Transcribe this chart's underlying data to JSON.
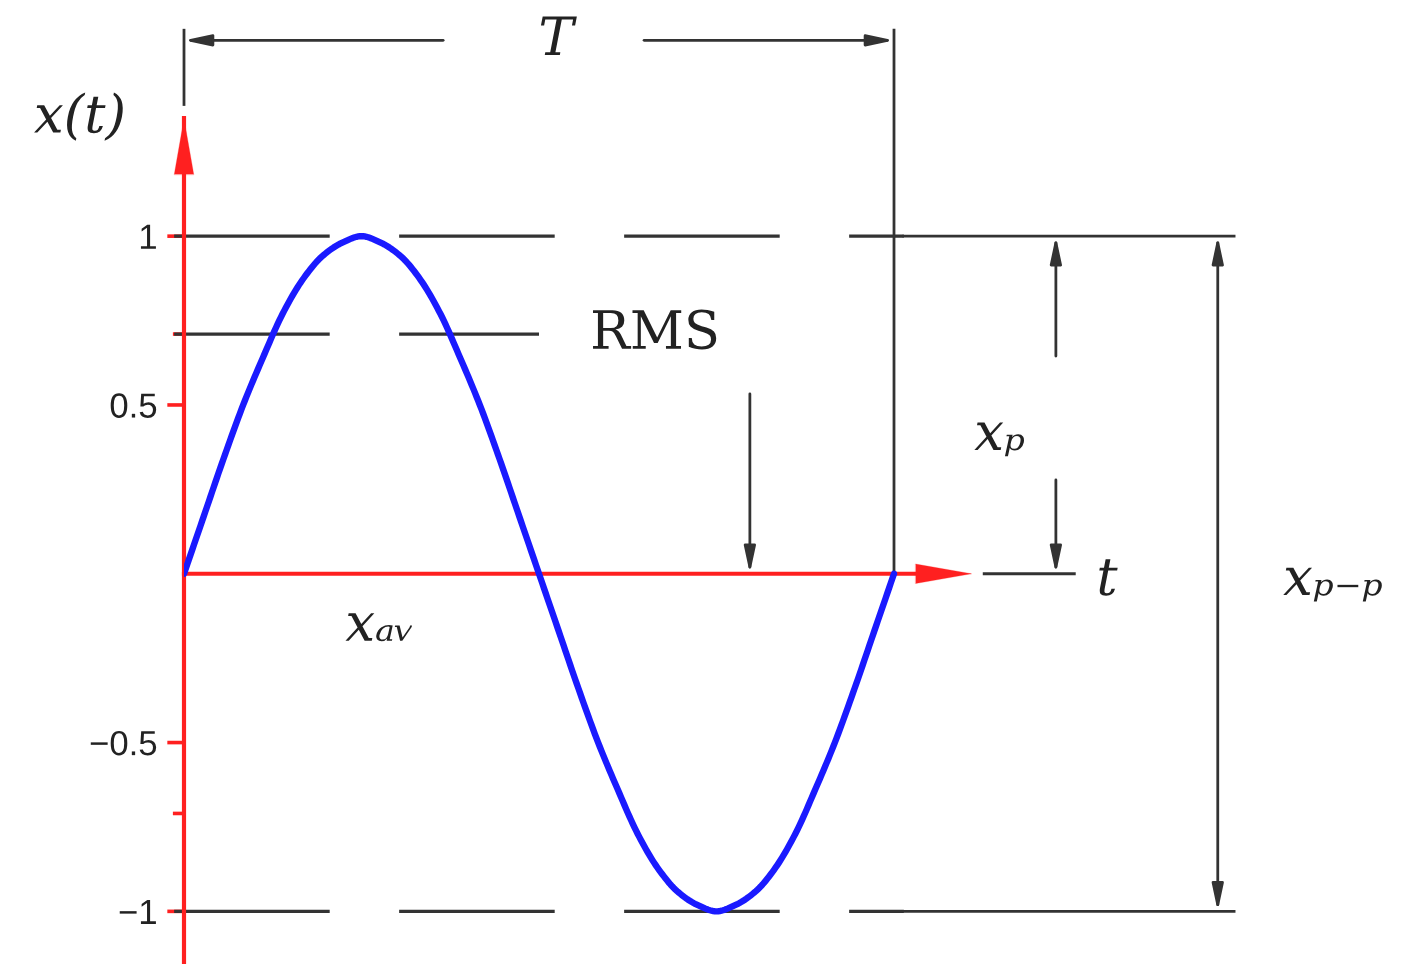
{
  "chart_data": {
    "type": "line",
    "ylabel": "x(t)",
    "categories": [
      null,
      null,
      null,
      null,
      null,
      null,
      null,
      null,
      null,
      null,
      null,
      null,
      null,
      null,
      null,
      null,
      null,
      null,
      null,
      null,
      null,
      null,
      null,
      null,
      null,
      null,
      null,
      null,
      null,
      null,
      null,
      null,
      null,
      null,
      null,
      null,
      null
    ],
    "series": [
      {
        "color": "#1a1aff",
        "values": [
          0,
          0.17,
          0.34,
          0.5,
          0.64,
          0.77,
          0.87,
          0.94,
          0.98,
          1,
          0.98,
          0.94,
          0.87,
          0.77,
          0.64,
          0.5,
          0.34,
          0.17,
          0,
          -0.17,
          -0.34,
          -0.5,
          -0.64,
          -0.77,
          -0.87,
          -0.94,
          -0.98,
          -1,
          -0.98,
          -0.94,
          -0.87,
          -0.77,
          -0.64,
          -0.5,
          -0.34,
          -0.17,
          0
        ]
      }
    ],
    "ylim": [
      -1.15,
      1.35
    ],
    "yticks": [
      {
        "value": -1,
        "label": "−1"
      },
      {
        "value": -0.71,
        "label": null
      },
      {
        "value": -0.5,
        "label": "−0.5"
      },
      0.5,
      {
        "value": 0.71,
        "label": null
      },
      1
    ],
    "ref_lines": [
      {
        "axis": "y",
        "value": 1,
        "line_style": "dashed",
        "color": "#333333"
      },
      {
        "axis": "y",
        "value": 0.71,
        "label": "RMS",
        "line_style": "dashed",
        "color": "#333333"
      },
      {
        "axis": "y",
        "value": -1,
        "line_style": "dashed",
        "color": "#333333"
      },
      {
        "axis": "y",
        "value": 0,
        "label": "xₐᵥ",
        "line_style": "solid",
        "color": "#ff2020"
      }
    ],
    "annotations": [
      "T",
      "xₚ",
      "t",
      "xₚ₋ₚ"
    ],
    "tick_labels": "y",
    "marker": "none",
    "line_style": "solid"
  }
}
